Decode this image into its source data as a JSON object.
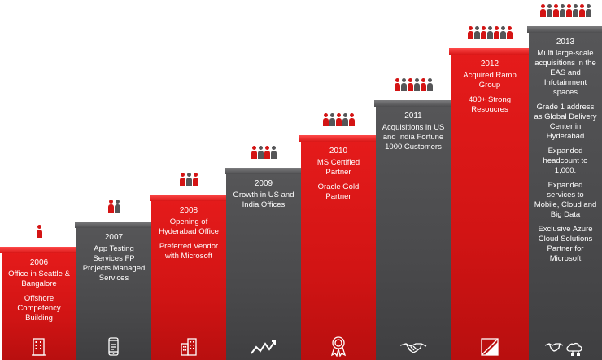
{
  "milestones": [
    {
      "year": "2006",
      "lines": [
        "Office in Seattle & Bangalore",
        "Offshore Competency Building"
      ],
      "color": "#d11414",
      "people": 1,
      "icon": "building-icon"
    },
    {
      "year": "2007",
      "lines": [
        "App Testing Services FP Projects Managed Services"
      ],
      "color": "#4a4a4c",
      "people": 2,
      "icon": "mobile-device-icon"
    },
    {
      "year": "2008",
      "lines": [
        "Opening of Hyderabad Office",
        "Preferred Vendor with Microsoft"
      ],
      "color": "#d11414",
      "people": 3,
      "icon": "office-building-icon"
    },
    {
      "year": "2009",
      "lines": [
        "Growth in US and India Offices"
      ],
      "color": "#4a4a4c",
      "people": 4,
      "icon": "growth-chart-icon"
    },
    {
      "year": "2010",
      "lines": [
        "MS Certified Partner",
        "Oracle Gold Partner"
      ],
      "color": "#d11414",
      "people": 5,
      "icon": "award-medal-icon"
    },
    {
      "year": "2011",
      "lines": [
        "Acquisitions in US and India Fortune 1000 Customers"
      ],
      "color": "#4a4a4c",
      "people": 6,
      "icon": "handshake-icon"
    },
    {
      "year": "2012",
      "lines": [
        "Acquired Ramp Group",
        "400+ Strong Resoucres"
      ],
      "color": "#d11414",
      "people": 7,
      "icon": "ramp-logo-icon"
    },
    {
      "year": "2013",
      "lines": [
        "Multi large-scale acquisitions in the EAS and Infotainment spaces",
        "Grade 1 address as Global Delivery Center in Hyderabad",
        "Expanded headcount to 1,000.",
        "Expanded services to Mobile, Cloud and Big Data",
        "Exclusive Azure Cloud Solutions Partner for Microsoft"
      ],
      "color": "#4a4a4c",
      "people": 8,
      "icon": "handshake-cloud-icon"
    }
  ]
}
